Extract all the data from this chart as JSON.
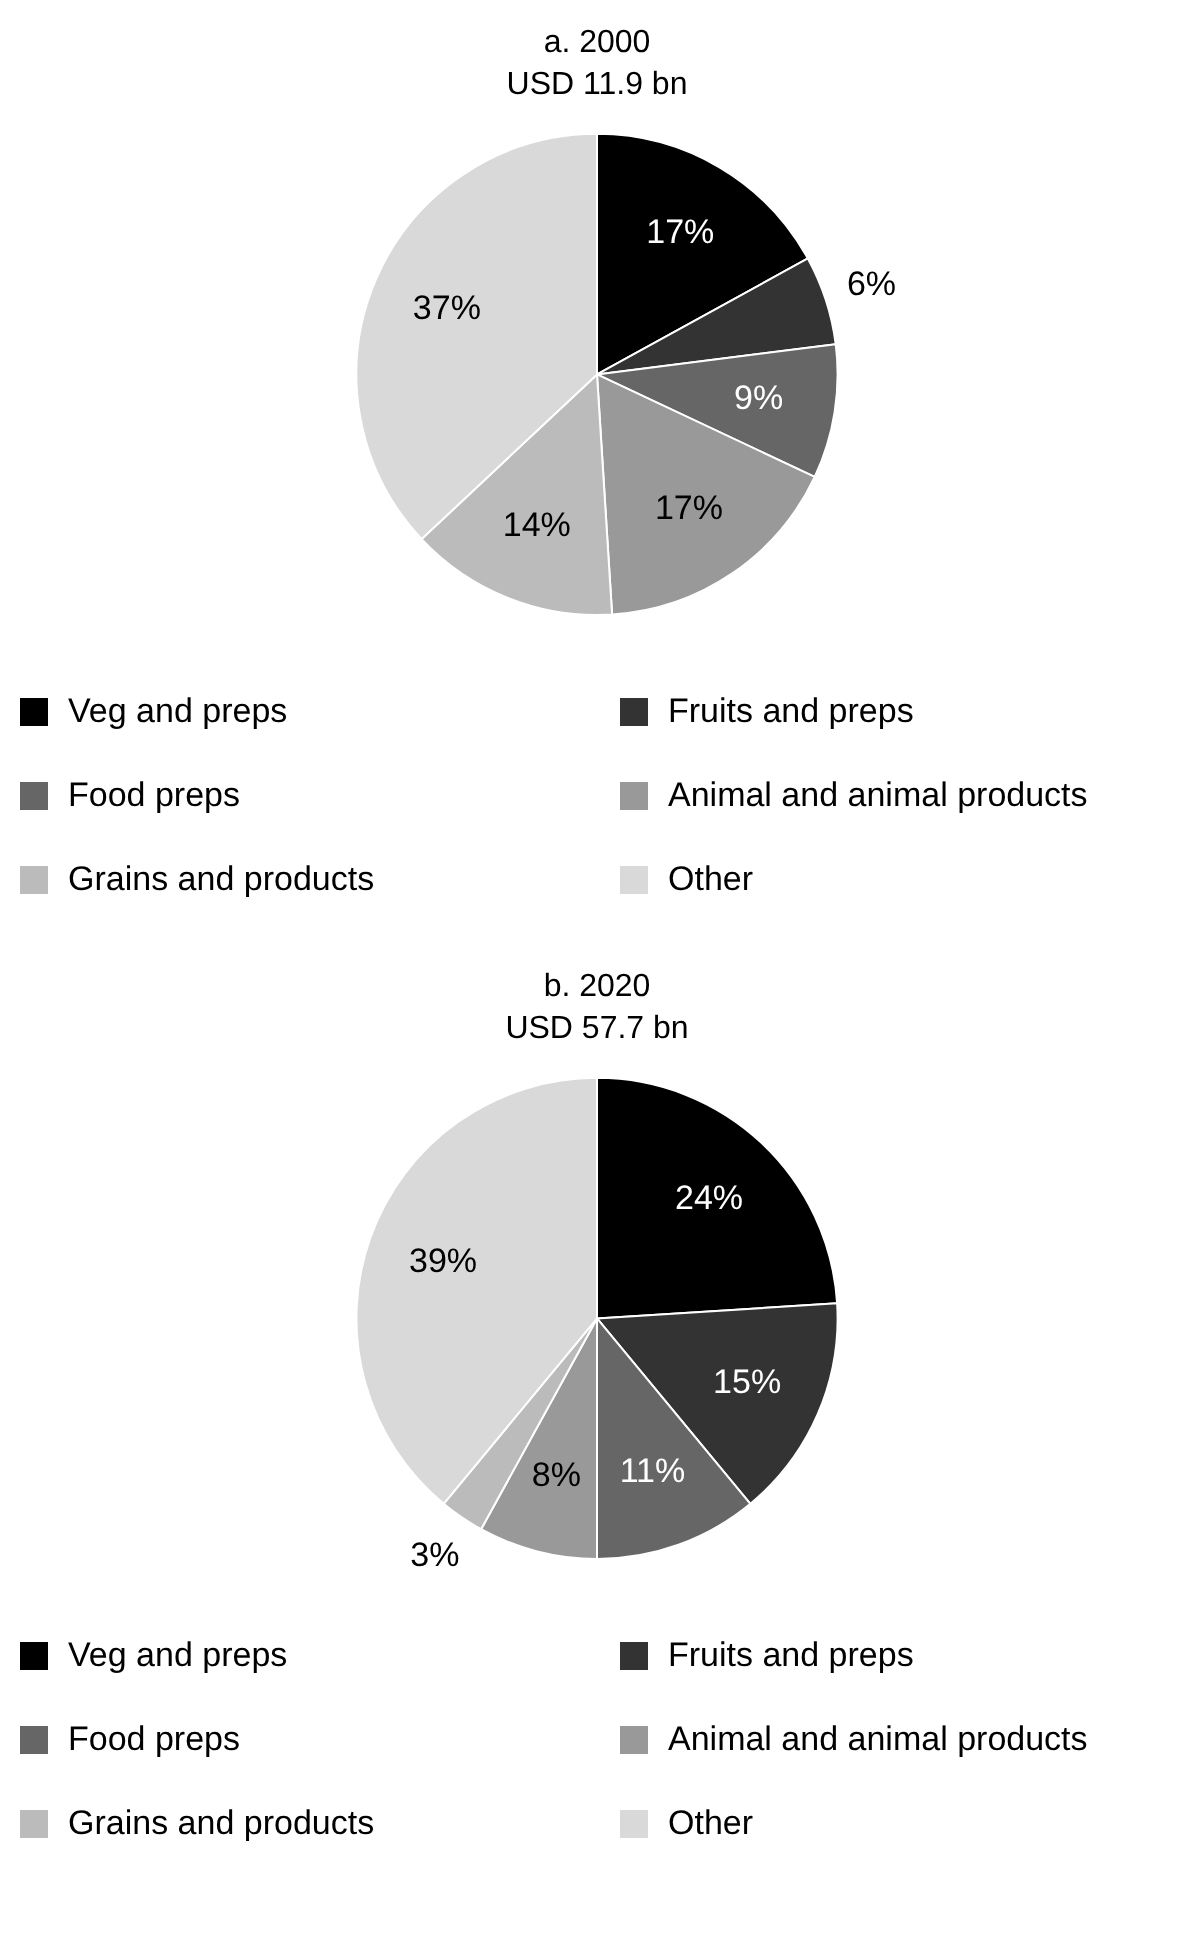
{
  "chart_data": [
    {
      "type": "pie",
      "title": "a. 2000",
      "subtitle": "USD 11.9 bn",
      "categories": [
        "Veg and preps",
        "Fruits and preps",
        "Food preps",
        "Animal and animal products",
        "Grains and products",
        "Other"
      ],
      "values": [
        17,
        6,
        9,
        17,
        14,
        37
      ],
      "value_labels": [
        "17%",
        "6%",
        "9%",
        "17%",
        "14%",
        "37%"
      ],
      "colors": [
        "#000000",
        "#333333",
        "#666666",
        "#999999",
        "#bbbbbb",
        "#d9d9d9"
      ],
      "legend": "bottom"
    },
    {
      "type": "pie",
      "title": "b. 2020",
      "subtitle": "USD 57.7 bn",
      "categories": [
        "Veg and preps",
        "Fruits and preps",
        "Food preps",
        "Animal and animal products",
        "Grains and products",
        "Other"
      ],
      "values": [
        24,
        15,
        11,
        8,
        3,
        39
      ],
      "value_labels": [
        "24%",
        "15%",
        "11%",
        "8%",
        "3%",
        "39%"
      ],
      "colors": [
        "#000000",
        "#333333",
        "#666666",
        "#999999",
        "#bbbbbb",
        "#d9d9d9"
      ],
      "legend": "bottom"
    }
  ]
}
